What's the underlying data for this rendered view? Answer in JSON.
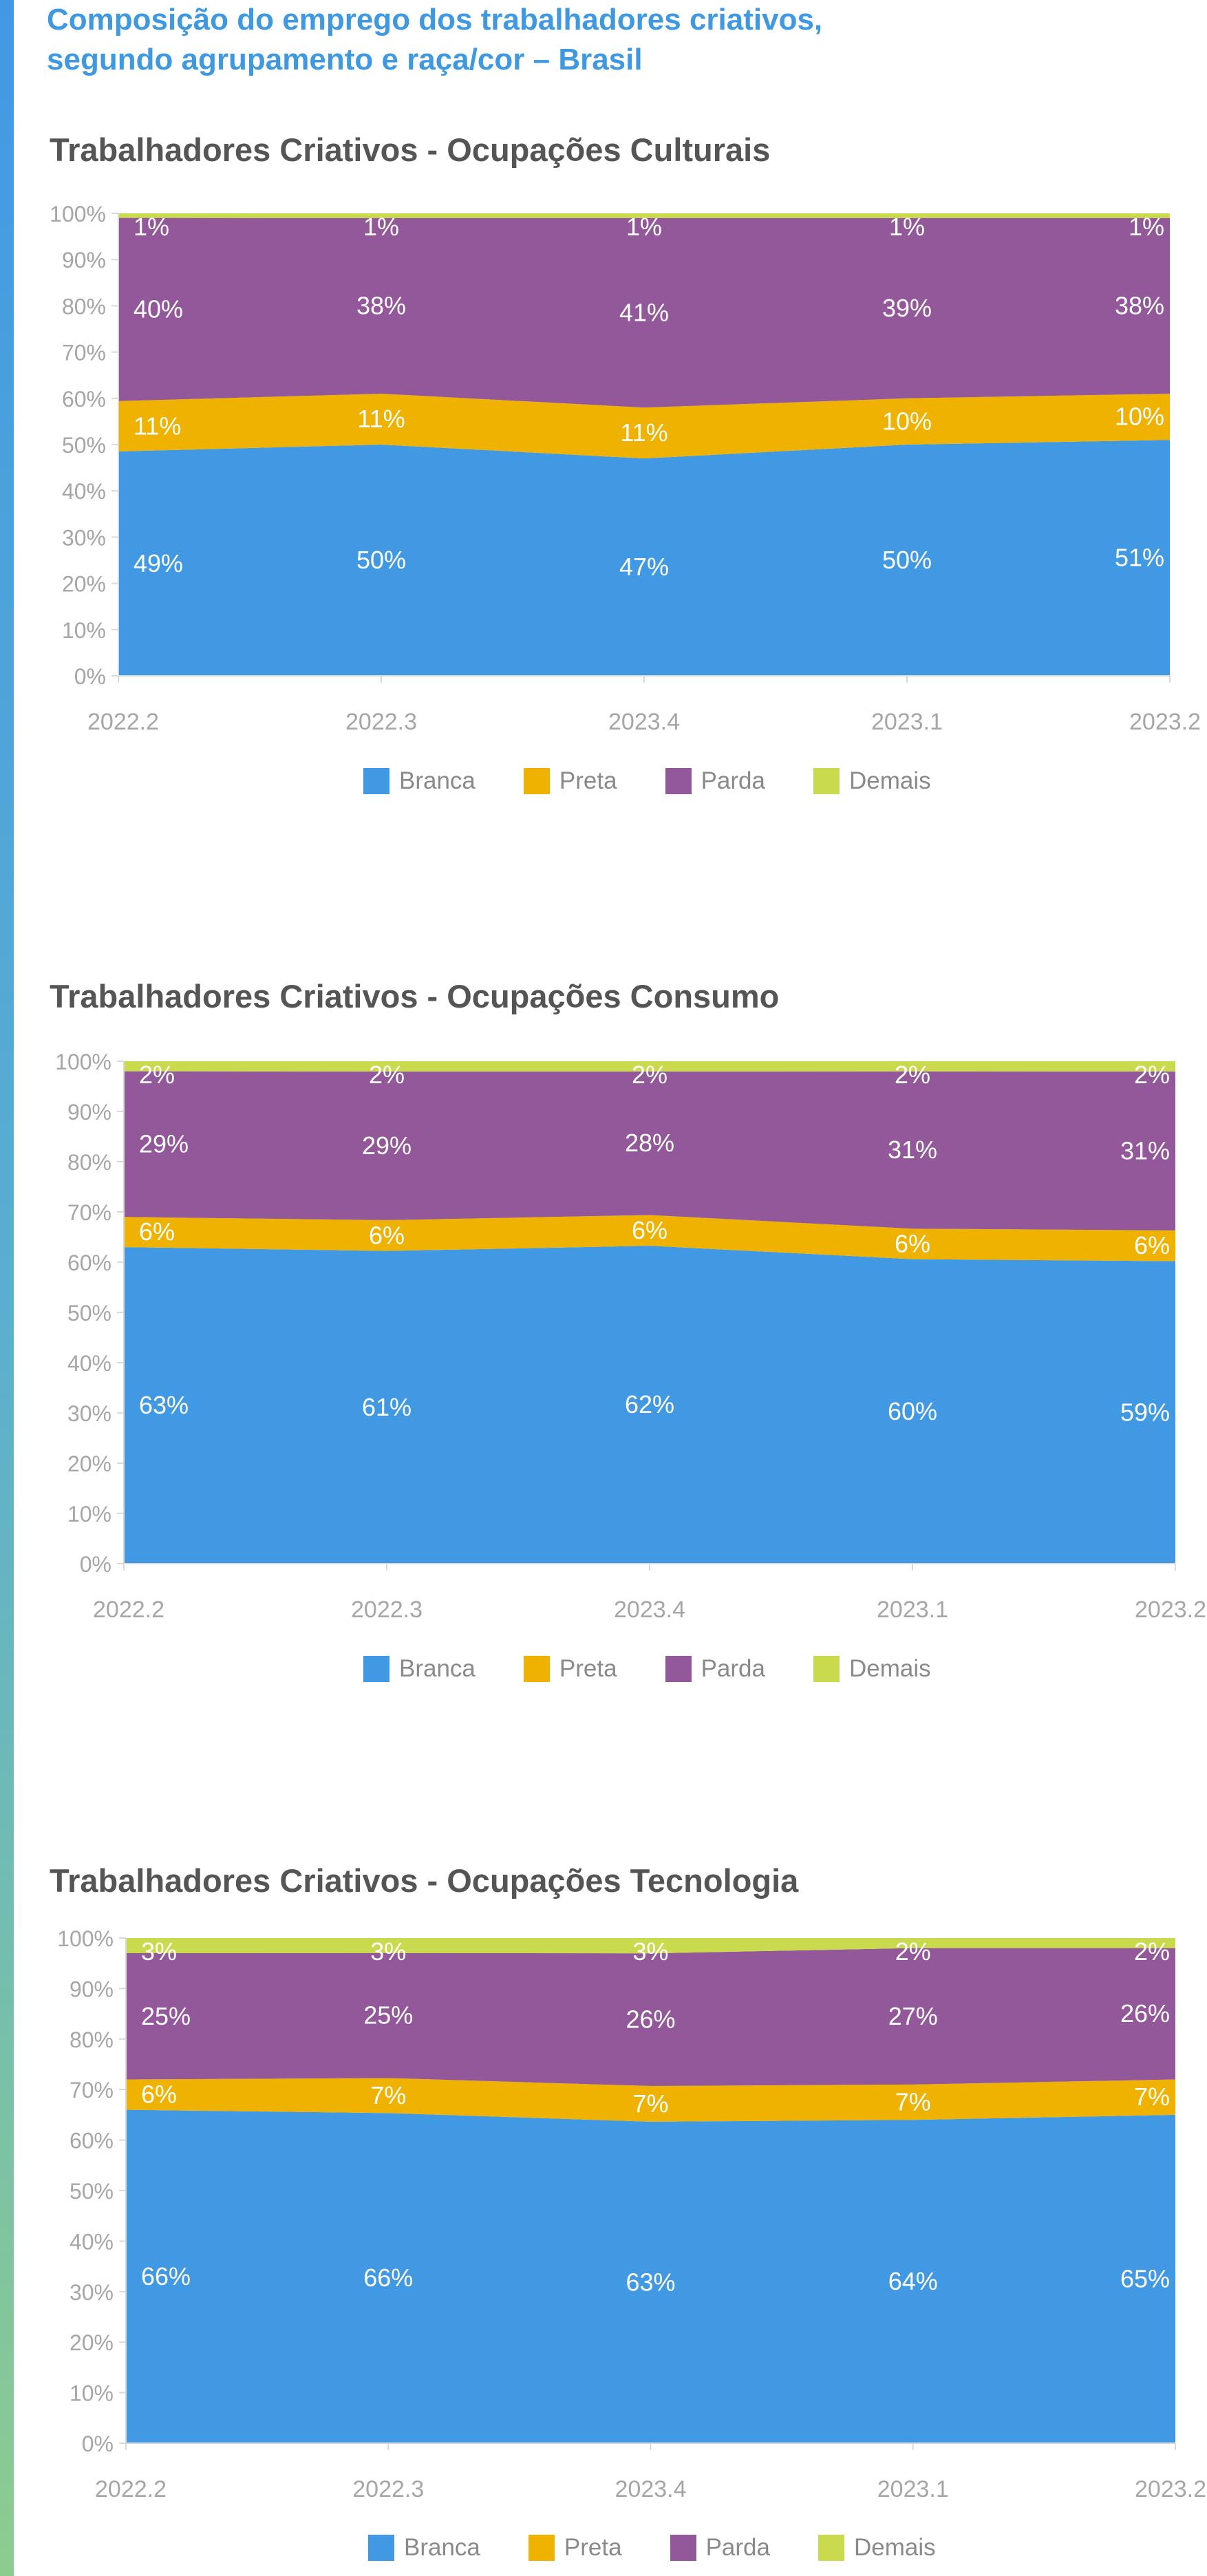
{
  "header": {
    "title_line1": "Composição do emprego dos trabalhadores criativos,",
    "title_line2": "segundo agrupamento e raça/cor – Brasil"
  },
  "colors": {
    "Branca": "#4199e4",
    "Preta": "#efb200",
    "Parda": "#93589a",
    "Demais": "#c9da4c",
    "label": "#ffffff",
    "axis_text": "#a6a6a6"
  },
  "legend": [
    "Branca",
    "Preta",
    "Parda",
    "Demais"
  ],
  "chart_data": [
    {
      "type": "area",
      "stacked": true,
      "title": "Trabalhadores Criativos - Ocupações Culturais",
      "categories": [
        "2022.2",
        "2022.3",
        "2023.4",
        "2023.1",
        "2023.2"
      ],
      "ylim": [
        0,
        100
      ],
      "yticks": [
        "0%",
        "10%",
        "20%",
        "30%",
        "40%",
        "50%",
        "60%",
        "70%",
        "80%",
        "90%",
        "100%"
      ],
      "grid": false,
      "legend_position": "bottom",
      "series": [
        {
          "name": "Branca",
          "values": [
            49,
            50,
            47,
            50,
            51
          ]
        },
        {
          "name": "Preta",
          "values": [
            11,
            11,
            11,
            10,
            10
          ]
        },
        {
          "name": "Parda",
          "values": [
            40,
            38,
            41,
            39,
            38
          ]
        },
        {
          "name": "Demais",
          "values": [
            1,
            1,
            1,
            1,
            1
          ]
        }
      ]
    },
    {
      "type": "area",
      "stacked": true,
      "title": "Trabalhadores Criativos - Ocupações Consumo",
      "categories": [
        "2022.2",
        "2022.3",
        "2023.4",
        "2023.1",
        "2023.2"
      ],
      "ylim": [
        0,
        100
      ],
      "yticks": [
        "0%",
        "10%",
        "20%",
        "30%",
        "40%",
        "50%",
        "60%",
        "70%",
        "80%",
        "90%",
        "100%"
      ],
      "grid": false,
      "legend_position": "bottom",
      "series": [
        {
          "name": "Branca",
          "values": [
            63,
            61,
            62,
            60,
            59
          ]
        },
        {
          "name": "Preta",
          "values": [
            6,
            6,
            6,
            6,
            6
          ]
        },
        {
          "name": "Parda",
          "values": [
            29,
            29,
            28,
            31,
            31
          ]
        },
        {
          "name": "Demais",
          "values": [
            2,
            2,
            2,
            2,
            2
          ]
        }
      ]
    },
    {
      "type": "area",
      "stacked": true,
      "title": "Trabalhadores Criativos - Ocupações Tecnologia",
      "categories": [
        "2022.2",
        "2022.3",
        "2023.4",
        "2023.1",
        "2023.2"
      ],
      "ylim": [
        0,
        100
      ],
      "yticks": [
        "0%",
        "10%",
        "20%",
        "30%",
        "40%",
        "50%",
        "60%",
        "70%",
        "80%",
        "90%",
        "100%"
      ],
      "grid": false,
      "legend_position": "bottom",
      "series": [
        {
          "name": "Branca",
          "values": [
            66,
            66,
            63,
            64,
            65
          ]
        },
        {
          "name": "Preta",
          "values": [
            6,
            7,
            7,
            7,
            7
          ]
        },
        {
          "name": "Parda",
          "values": [
            25,
            25,
            26,
            27,
            26
          ]
        },
        {
          "name": "Demais",
          "values": [
            3,
            3,
            3,
            2,
            2
          ]
        }
      ]
    }
  ]
}
